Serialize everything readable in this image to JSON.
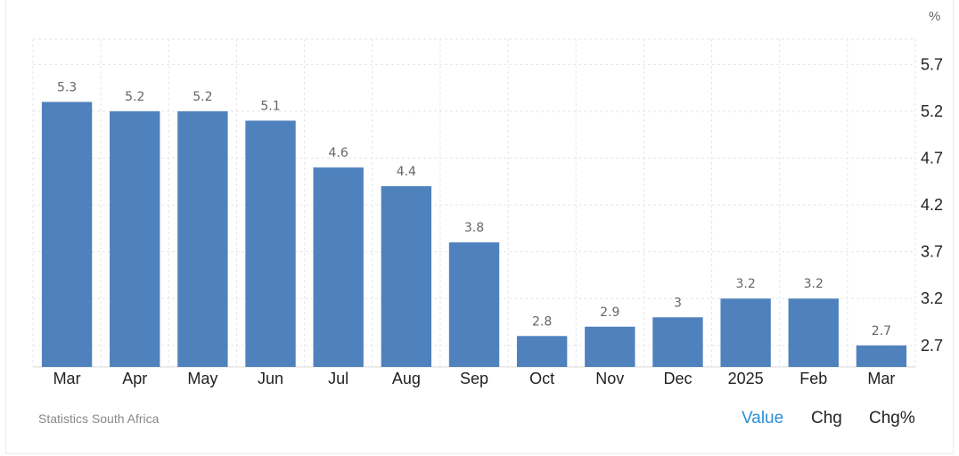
{
  "chart_data": {
    "type": "bar",
    "unit": "%",
    "categories": [
      "Mar",
      "Apr",
      "May",
      "Jun",
      "Jul",
      "Aug",
      "Sep",
      "Oct",
      "Nov",
      "Dec",
      "2025",
      "Feb",
      "Mar"
    ],
    "values": [
      5.3,
      5.2,
      5.2,
      5.1,
      4.6,
      4.4,
      3.8,
      2.8,
      2.9,
      3,
      3.2,
      3.2,
      2.7
    ],
    "data_labels": [
      "5.3",
      "5.2",
      "5.2",
      "5.1",
      "4.6",
      "4.4",
      "3.8",
      "2.8",
      "2.9",
      "3",
      "3.2",
      "3.2",
      "2.7"
    ],
    "y_ticks": [
      2.7,
      3.2,
      3.7,
      4.2,
      4.7,
      5.2,
      5.7
    ],
    "y_tick_labels": [
      "2.7",
      "3.2",
      "3.7",
      "4.2",
      "4.7",
      "5.2",
      "5.7"
    ],
    "ylim": [
      2.47,
      5.97
    ],
    "y_axis_position": "right",
    "grid": true,
    "bar_color": "#4f81bd"
  },
  "footer": {
    "source": "Statistics South Africa",
    "tabs": [
      {
        "label": "Value",
        "active": true
      },
      {
        "label": "Chg",
        "active": false
      },
      {
        "label": "Chg%",
        "active": false
      }
    ],
    "active_color": "#2d8fd5"
  }
}
